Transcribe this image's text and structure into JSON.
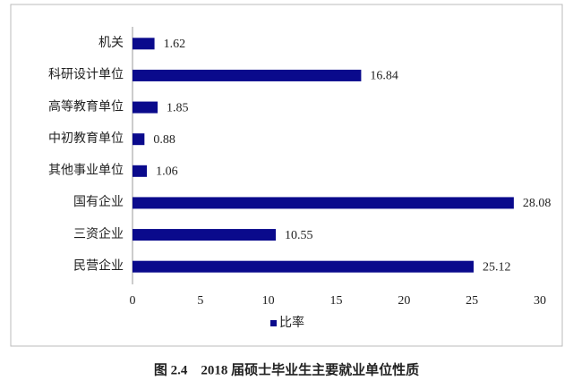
{
  "chart_data": {
    "type": "hbar",
    "categories": [
      "机关",
      "科研设计单位",
      "高等教育单位",
      "中初教育单位",
      "其他事业单位",
      "国有企业",
      "三资企业",
      "民营企业"
    ],
    "series": [
      {
        "name": "比率",
        "color": "#0a0a8c",
        "values": [
          1.62,
          16.84,
          1.85,
          0.88,
          1.06,
          28.08,
          10.55,
          25.12
        ]
      }
    ],
    "xlim": [
      0,
      30
    ],
    "xticks": [
      0,
      5,
      10,
      15,
      20,
      25,
      30
    ],
    "grid": false,
    "legend": "bottom",
    "caption": "图 2.4　2018 届硕士毕业生主要就业单位性质"
  }
}
